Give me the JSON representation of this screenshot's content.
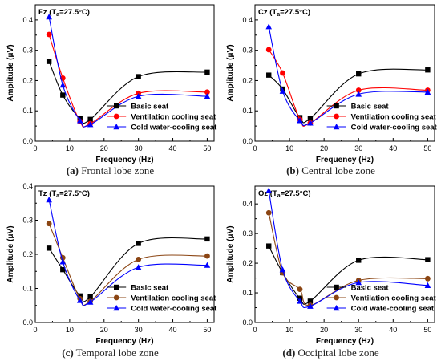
{
  "figure": {
    "captions": [
      {
        "letter": "(a)",
        "text": " Frontal lobe zone"
      },
      {
        "letter": "(b)",
        "text": " Central lobe zone"
      },
      {
        "letter": "(c)",
        "text": " Temporal lobe zone"
      },
      {
        "letter": "(d)",
        "text": " Occipital lobe zone"
      }
    ]
  },
  "chart_data": [
    {
      "type": "line",
      "title_prefix": "Fz (T",
      "title_sub": "a",
      "title_suffix": "=27.5°C)",
      "xlabel": "Frequency (Hz)",
      "ylabel": "Amplitude (μV)",
      "xlim": [
        0,
        52
      ],
      "ylim": [
        0.0,
        0.45
      ],
      "xticks": [
        0,
        10,
        20,
        30,
        40,
        50
      ],
      "yticks": [
        0.0,
        0.1,
        0.2,
        0.3,
        0.4
      ],
      "x": [
        4,
        8,
        13,
        16,
        30,
        50
      ],
      "legend_position": "lower-right",
      "series": [
        {
          "name": "Basic seat",
          "color": "#000000",
          "marker": "square",
          "values": [
            0.263,
            0.152,
            0.075,
            0.072,
            0.213,
            0.228
          ]
        },
        {
          "name": "Ventilation cooling seat",
          "color": "#ff0000",
          "marker": "circle",
          "values": [
            0.352,
            0.208,
            0.065,
            0.058,
            0.158,
            0.162
          ]
        },
        {
          "name": "Cold water-cooling seat",
          "color": "#0000ff",
          "marker": "triangle",
          "values": [
            0.41,
            0.185,
            0.068,
            0.055,
            0.148,
            0.148
          ]
        }
      ]
    },
    {
      "type": "line",
      "title_prefix": "Cz (T",
      "title_sub": "a",
      "title_suffix": "=27.5°C)",
      "xlabel": "Frequency (Hz)",
      "ylabel": "Amplitude (μV)",
      "xlim": [
        0,
        52
      ],
      "ylim": [
        0.0,
        0.45
      ],
      "xticks": [
        0,
        10,
        20,
        30,
        40,
        50
      ],
      "yticks": [
        0.0,
        0.1,
        0.2,
        0.3,
        0.4
      ],
      "x": [
        4,
        8,
        13,
        16,
        30,
        50
      ],
      "legend_position": "lower-right",
      "series": [
        {
          "name": "Basic seat",
          "color": "#000000",
          "marker": "square",
          "values": [
            0.218,
            0.172,
            0.078,
            0.075,
            0.222,
            0.235
          ]
        },
        {
          "name": "Ventilation cooling seat",
          "color": "#ff0000",
          "marker": "circle",
          "values": [
            0.302,
            0.225,
            0.072,
            0.06,
            0.168,
            0.168
          ]
        },
        {
          "name": "Cold water-cooling seat",
          "color": "#0000ff",
          "marker": "triangle",
          "values": [
            0.378,
            0.165,
            0.068,
            0.06,
            0.155,
            0.162
          ]
        }
      ]
    },
    {
      "type": "line",
      "title_prefix": "Tz (T",
      "title_sub": "a",
      "title_suffix": "=27.5°C)",
      "xlabel": "Frequency (Hz)",
      "ylabel": "Amplitude (μV)",
      "xlim": [
        0,
        52
      ],
      "ylim": [
        0.0,
        0.4
      ],
      "xticks": [
        0,
        10,
        20,
        30,
        40,
        50
      ],
      "yticks": [
        0.0,
        0.1,
        0.2,
        0.3,
        0.4
      ],
      "x": [
        4,
        8,
        13,
        16,
        30,
        50
      ],
      "legend_position": "lower-right",
      "series": [
        {
          "name": "Basic seat",
          "color": "#000000",
          "marker": "square",
          "values": [
            0.218,
            0.155,
            0.078,
            0.075,
            0.232,
            0.245
          ]
        },
        {
          "name": "Ventilation cooling seat",
          "color": "#8b4513",
          "marker": "circle",
          "values": [
            0.29,
            0.19,
            0.07,
            0.062,
            0.185,
            0.195
          ]
        },
        {
          "name": "Cold water-cooling seat",
          "color": "#0000ff",
          "marker": "triangle",
          "values": [
            0.36,
            0.178,
            0.065,
            0.06,
            0.162,
            0.168
          ]
        }
      ]
    },
    {
      "type": "line",
      "title_prefix": "Oz (T",
      "title_sub": "a",
      "title_suffix": "=27.5°C)",
      "xlabel": "Frequency (Hz)",
      "ylabel": "Amplitude (μV)",
      "xlim": [
        0,
        52
      ],
      "ylim": [
        0.0,
        0.46
      ],
      "xticks": [
        0,
        10,
        20,
        30,
        40,
        50
      ],
      "yticks": [
        0.0,
        0.1,
        0.2,
        0.3,
        0.4
      ],
      "x": [
        4,
        8,
        13,
        16,
        30,
        50
      ],
      "legend_position": "lower-right",
      "series": [
        {
          "name": "Basic seat",
          "color": "#000000",
          "marker": "square",
          "values": [
            0.258,
            0.168,
            0.082,
            0.072,
            0.21,
            0.212
          ]
        },
        {
          "name": "Ventilation cooling seat",
          "color": "#8b4513",
          "marker": "circle",
          "values": [
            0.37,
            0.168,
            0.112,
            0.058,
            0.142,
            0.148
          ]
        },
        {
          "name": "Cold wate-cooling seat",
          "color": "#0000ff",
          "marker": "triangle",
          "values": [
            0.445,
            0.178,
            0.072,
            0.055,
            0.135,
            0.125
          ]
        }
      ]
    }
  ]
}
